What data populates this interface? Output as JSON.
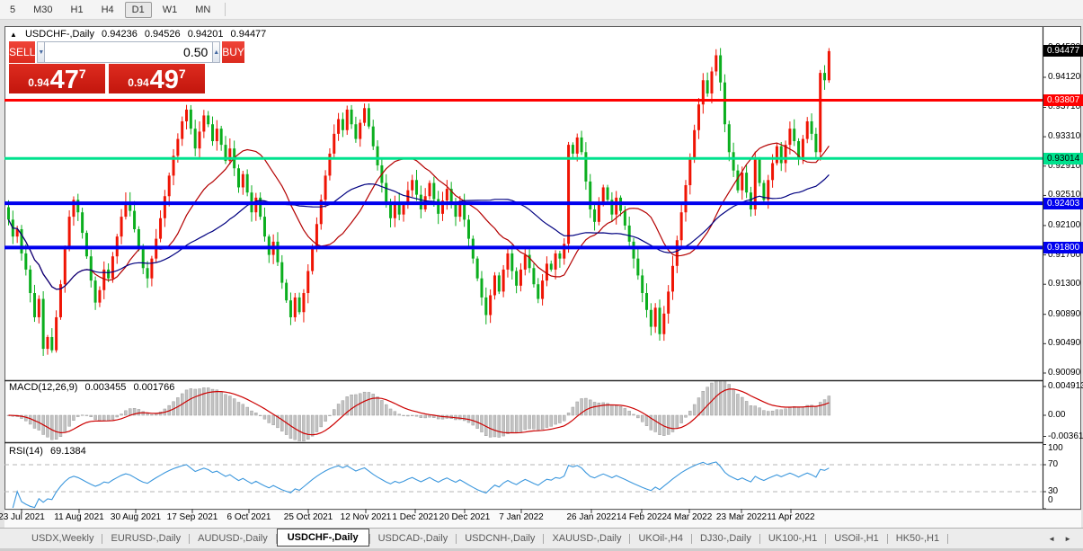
{
  "toolbar": {
    "timeframes": [
      "5",
      "M30",
      "H1",
      "H4",
      "D1",
      "W1",
      "MN"
    ],
    "active_timeframe": "D1"
  },
  "icons": {
    "collapse_arrow": "▲",
    "spinner_down": "▼",
    "spinner_up": "▲",
    "tab_scroll_left": "◄",
    "tab_scroll_right": "►"
  },
  "window_title": {
    "symbol": "USDCHF-,Daily",
    "open": "0.94236",
    "high": "0.94526",
    "low": "0.94201",
    "close": "0.94477"
  },
  "trade_panel": {
    "sell_label": "SELL",
    "buy_label": "BUY",
    "lot_value": "0.50",
    "sell_price": {
      "big_figure": "0.94",
      "pips": "47",
      "fraction": "7"
    },
    "buy_price": {
      "big_figure": "0.94",
      "pips": "49",
      "fraction": "7"
    }
  },
  "price_axis": {
    "grid_labels": [
      "0.94530",
      "0.94120",
      "0.93710",
      "0.93310",
      "0.92910",
      "0.92510",
      "0.92100",
      "0.91700",
      "0.91300",
      "0.90890",
      "0.90490",
      "0.90090"
    ],
    "current_price_label": "0.94477",
    "current_price_value": 0.94477
  },
  "levels": [
    {
      "label": "0.93807",
      "price": 0.93807,
      "color": "#ff0000",
      "text_color": "#ffffff",
      "width": 3
    },
    {
      "label": "0.93014",
      "price": 0.93014,
      "color": "#00e28e",
      "text_color": "#000000",
      "width": 3
    },
    {
      "label": "0.92403",
      "price": 0.92403,
      "color": "#0000ee",
      "text_color": "#ffffff",
      "width": 4
    },
    {
      "label": "0.91800",
      "price": 0.918,
      "color": "#0000ee",
      "text_color": "#ffffff",
      "width": 4
    }
  ],
  "macd_panel": {
    "title": "MACD(12,26,9)",
    "value_main": "0.003455",
    "value_signal": "0.001766",
    "axis_labels": [
      "0.004913",
      "0.00",
      "-0.00361"
    ]
  },
  "rsi_panel": {
    "title": "RSI(14)",
    "value": "69.1384",
    "levels": [
      70,
      30
    ],
    "axis_labels": [
      "100",
      "70",
      "30",
      "0"
    ]
  },
  "tab_bar": {
    "tabs": [
      "USDX,Weekly",
      "EURUSD-,Daily",
      "AUDUSD-,Daily",
      "USDCHF-,Daily",
      "USDCAD-,Daily",
      "USDCNH-,Daily",
      "XAUUSD-,Daily",
      "UKOil-,H4",
      "DJ30-,Daily",
      "UK100-,H1",
      "USOil-,H1",
      "HK50-,H1"
    ],
    "active_tab": "USDCHF-,Daily"
  },
  "theme": {
    "candle_up": "#ef1404",
    "candle_down": "#0bae1e",
    "ma_fast": "#b40000",
    "ma_slow": "#000080",
    "macd_hist_fill": "#c3c3c3",
    "macd_hist_stroke": "#909090",
    "macd_signal": "#cc0000",
    "rsi_line": "#3b97dd",
    "rsi_dash": "#b5b5b5",
    "trade_red": "#d82a1e"
  },
  "chart_data": {
    "type": "candlestick",
    "symbol": "USDCHF-",
    "timeframe": "Daily",
    "last_bar": {
      "open": 0.94236,
      "high": 0.94526,
      "low": 0.94201,
      "close": 0.94477
    },
    "y_range": [
      0.8999,
      0.9481
    ],
    "x_labels": [
      "23 Jul 2021",
      "11 Aug 2021",
      "30 Aug 2021",
      "17 Sep 2021",
      "6 Oct 2021",
      "25 Oct 2021",
      "12 Nov 2021",
      "1 Dec 2021",
      "20 Dec 2021",
      "7 Jan 2022",
      "26 Jan 2022",
      "14 Feb 2022",
      "4 Mar 2022",
      "23 Mar 2022",
      "11 Apr 2022"
    ],
    "horizontal_levels": [
      0.93807,
      0.93014,
      0.92403,
      0.918
    ],
    "overlays": [
      {
        "name": "MA-fast",
        "period": 20,
        "color": "#b40000"
      },
      {
        "name": "MA-slow",
        "period": 45,
        "color": "#000080"
      }
    ],
    "indicators": [
      {
        "name": "MACD",
        "params": "12,26,9",
        "last_values": [
          0.003455,
          0.001766
        ],
        "axis": [
          0.004913,
          0.0,
          -0.00361
        ]
      },
      {
        "name": "RSI",
        "params": "14",
        "last_value": 69.1384,
        "levels": [
          70,
          30
        ],
        "axis": [
          100,
          70,
          30,
          0
        ]
      }
    ],
    "closes": [
      0.9218,
      0.9195,
      0.9205,
      0.9172,
      0.915,
      0.9118,
      0.9085,
      0.911,
      0.9042,
      0.9058,
      0.904,
      0.9085,
      0.913,
      0.9178,
      0.9222,
      0.9245,
      0.9228,
      0.92,
      0.9168,
      0.9135,
      0.9105,
      0.9122,
      0.915,
      0.9138,
      0.9168,
      0.9195,
      0.9222,
      0.9242,
      0.923,
      0.9205,
      0.9178,
      0.9152,
      0.9138,
      0.9165,
      0.9192,
      0.922,
      0.925,
      0.9278,
      0.9305,
      0.9328,
      0.9352,
      0.9368,
      0.9342,
      0.9315,
      0.9338,
      0.936,
      0.9348,
      0.9325,
      0.9342,
      0.932,
      0.9298,
      0.9315,
      0.9288,
      0.9262,
      0.928,
      0.9255,
      0.9228,
      0.9248,
      0.9222,
      0.9195,
      0.917,
      0.9188,
      0.916,
      0.9132,
      0.9108,
      0.9085,
      0.9112,
      0.9092,
      0.9118,
      0.9148,
      0.918,
      0.9212,
      0.9245,
      0.9278,
      0.9308,
      0.9335,
      0.9355,
      0.934,
      0.9368,
      0.9348,
      0.9328,
      0.935,
      0.937,
      0.9345,
      0.9318,
      0.9292,
      0.9268,
      0.9242,
      0.922,
      0.9242,
      0.9225,
      0.9238,
      0.9258,
      0.9272,
      0.9252,
      0.9232,
      0.925,
      0.9268,
      0.9246,
      0.9226,
      0.9244,
      0.926,
      0.924,
      0.9222,
      0.924,
      0.9218,
      0.9192,
      0.9165,
      0.9138,
      0.9112,
      0.9088,
      0.9115,
      0.9142,
      0.912,
      0.915,
      0.9172,
      0.9148,
      0.9128,
      0.915,
      0.917,
      0.9152,
      0.913,
      0.911,
      0.9135,
      0.9158,
      0.915,
      0.9172,
      0.9165,
      0.9185,
      0.932,
      0.9308,
      0.933,
      0.931,
      0.927,
      0.9232,
      0.9215,
      0.924,
      0.9262,
      0.9245,
      0.9225,
      0.9248,
      0.923,
      0.921,
      0.9188,
      0.9165,
      0.9142,
      0.9118,
      0.9095,
      0.9072,
      0.9098,
      0.9062,
      0.909,
      0.912,
      0.9155,
      0.919,
      0.9228,
      0.9265,
      0.9302,
      0.934,
      0.9375,
      0.9408,
      0.939,
      0.942,
      0.9442,
      0.9405,
      0.9348,
      0.931,
      0.9285,
      0.9258,
      0.9282,
      0.9255,
      0.9232,
      0.93,
      0.9268,
      0.9245,
      0.9272,
      0.9295,
      0.9318,
      0.9295,
      0.932,
      0.9342,
      0.9325,
      0.9302,
      0.9328,
      0.9352,
      0.9335,
      0.931,
      0.9418,
      0.9408,
      0.94477
    ]
  }
}
